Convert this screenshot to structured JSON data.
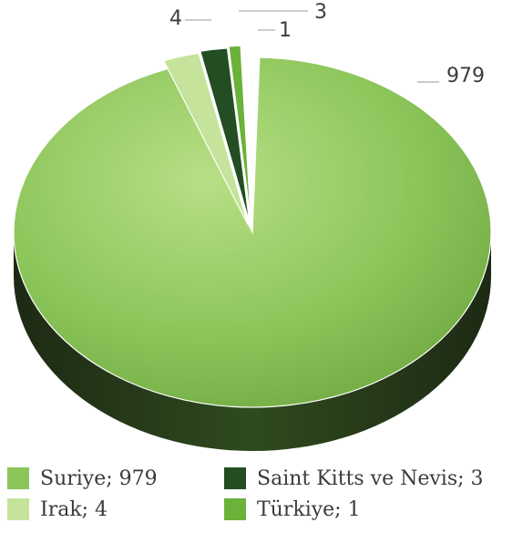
{
  "chart_data": {
    "type": "pie",
    "categories": [
      "Suriye",
      "Irak",
      "Saint Kitts ve Nevis",
      "Türkiye"
    ],
    "values": [
      979,
      4,
      3,
      1
    ],
    "value_labels": [
      "979",
      "4",
      "3",
      "1"
    ],
    "legend": [
      {
        "text": "Suriye; 979"
      },
      {
        "text": "Irak; 4"
      },
      {
        "text": "Saint Kitts ve Nevis; 3"
      },
      {
        "text": "Türkiye; 1"
      }
    ],
    "colors": [
      "#8cc55a",
      "#c5e39a",
      "#234d22",
      "#6bb23a"
    ],
    "legend_placement": "bottom",
    "three_d": true
  }
}
